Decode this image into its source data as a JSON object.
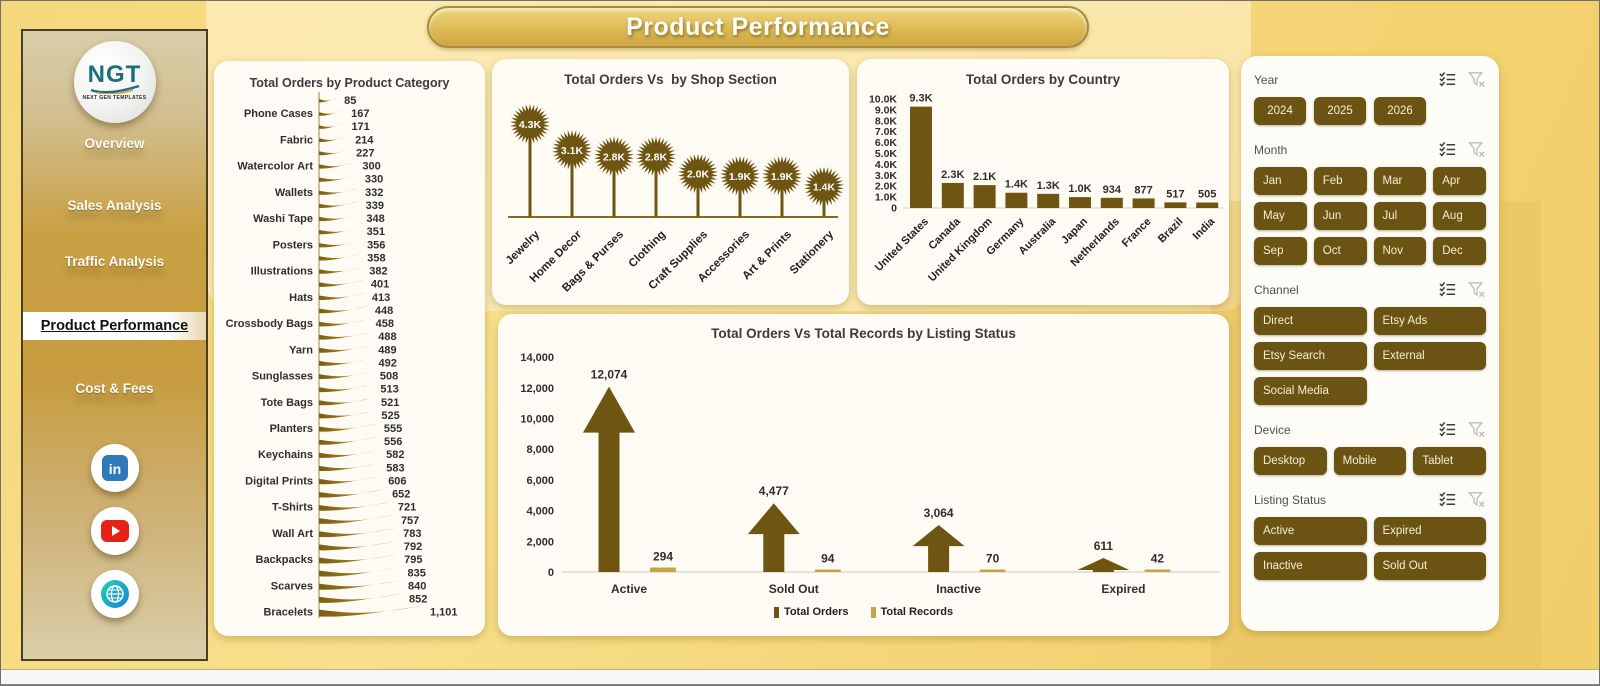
{
  "page": {
    "title": "Product Performance"
  },
  "colors": {
    "accent_dark": "#6e5511",
    "accent_mid": "#7c5e10",
    "accent_light": "#c9a244",
    "ribbon_light": "#bf9c35",
    "axis_text": "#2e2e2e",
    "card_bg": "#fdfbf3"
  },
  "sidebar": {
    "logo": {
      "text": "NGT",
      "subtext": "NEXT GEN TEMPLATES"
    },
    "items": [
      {
        "label": "Overview",
        "active": false
      },
      {
        "label": "Sales Analysis",
        "active": false
      },
      {
        "label": "Traffic Analysis",
        "active": false
      },
      {
        "label": "Product Performance",
        "active": true
      },
      {
        "label": "Cost & Fees",
        "active": false
      }
    ],
    "social": [
      "linkedin-icon",
      "youtube-icon",
      "globe-icon"
    ]
  },
  "chart_data": [
    {
      "type": "bar",
      "orientation": "horizontal",
      "title": "Total Orders by Product Category",
      "categories": [
        "",
        "Phone Cases",
        "",
        "Fabric",
        "",
        "Watercolor Art",
        "",
        "Wallets",
        "",
        "Washi Tape",
        "",
        "Posters",
        "",
        "Illustrations",
        "",
        "Hats",
        "",
        "Crossbody Bags",
        "",
        "Yarn",
        "",
        "Sunglasses",
        "",
        "Tote Bags",
        "",
        "Planters",
        "",
        "Keychains",
        "",
        "Digital Prints",
        "",
        "T-Shirts",
        "",
        "Wall Art",
        "",
        "Backpacks",
        "",
        "Scarves",
        "",
        "Bracelets"
      ],
      "values": [
        85,
        167,
        171,
        214,
        227,
        300,
        330,
        332,
        339,
        348,
        351,
        356,
        358,
        382,
        401,
        413,
        448,
        458,
        488,
        489,
        492,
        508,
        513,
        521,
        525,
        555,
        556,
        582,
        583,
        606,
        652,
        721,
        757,
        783,
        792,
        795,
        835,
        840,
        852,
        1101
      ],
      "value_labels": [
        "85",
        "167",
        "171",
        "214",
        "227",
        "300",
        "330",
        "332",
        "339",
        "348",
        "351",
        "356",
        "358",
        "382",
        "401",
        "413",
        "448",
        "458",
        "488",
        "489",
        "492",
        "508",
        "513",
        "521",
        "525",
        "555",
        "556",
        "582",
        "583",
        "606",
        "652",
        "721",
        "757",
        "783",
        "792",
        "795",
        "835",
        "840",
        "852",
        "1,101"
      ],
      "xlim": [
        0,
        1101
      ]
    },
    {
      "type": "lollipop",
      "title": "Total Orders Vs  by Shop Section",
      "categories": [
        "Jewelry",
        "Home Decor",
        "Bags & Purses",
        "Clothing",
        "Craft Supplies",
        "Accessories",
        "Art & Prints",
        "Stationery"
      ],
      "values": [
        4300,
        3100,
        2800,
        2800,
        2000,
        1900,
        1900,
        1400
      ],
      "value_labels": [
        "4.3K",
        "3.1K",
        "2.8K",
        "2.8K",
        "2.0K",
        "1.9K",
        "1.9K",
        "1.4K"
      ],
      "ylim": [
        0,
        4300
      ]
    },
    {
      "type": "bar",
      "title": "Total Orders by Country",
      "categories": [
        "United States",
        "Canada",
        "United Kingdom",
        "Germany",
        "Australia",
        "Japan",
        "Netherlands",
        "France",
        "Brazil",
        "India"
      ],
      "values": [
        9300,
        2300,
        2100,
        1400,
        1300,
        1000,
        934,
        877,
        517,
        505
      ],
      "value_labels": [
        "9.3K",
        "2.3K",
        "2.1K",
        "1.4K",
        "1.3K",
        "1.0K",
        "934",
        "877",
        "517",
        "505"
      ],
      "yticks": [
        "10.0K",
        "9.0K",
        "8.0K",
        "7.0K",
        "6.0K",
        "5.0K",
        "4.0K",
        "3.0K",
        "2.0K",
        "1.0K",
        "0"
      ],
      "ylim": [
        0,
        10000
      ]
    },
    {
      "type": "arrow-bar",
      "title": "Total Orders Vs Total Records by Listing Status",
      "categories": [
        "Active",
        "Sold Out",
        "Inactive",
        "Expired"
      ],
      "series": [
        {
          "name": "Total Orders",
          "values": [
            12074,
            4477,
            3064,
            611
          ],
          "labels": [
            "12,074",
            "4,477",
            "3,064",
            "611"
          ]
        },
        {
          "name": "Total Records",
          "values": [
            294,
            94,
            70,
            42
          ],
          "labels": [
            "294",
            "94",
            "70",
            "42"
          ]
        }
      ],
      "yticks": [
        "0",
        "2,000",
        "4,000",
        "6,000",
        "8,000",
        "10,000",
        "12,000",
        "14,000"
      ],
      "ylim": [
        0,
        14000
      ],
      "legend_position": "bottom"
    }
  ],
  "slicers": [
    {
      "title": "Year",
      "layout": "year",
      "options": [
        "2024",
        "2025",
        "2026"
      ]
    },
    {
      "title": "Month",
      "layout": "cols-4",
      "options": [
        "Jan",
        "Feb",
        "Mar",
        "Apr",
        "May",
        "Jun",
        "Jul",
        "Aug",
        "Sep",
        "Oct",
        "Nov",
        "Dec"
      ]
    },
    {
      "title": "Channel",
      "layout": "cols-2",
      "options": [
        "Direct",
        "Etsy Ads",
        "Etsy Search",
        "External",
        "Social Media"
      ]
    },
    {
      "title": "Device",
      "layout": "cols-3",
      "options": [
        "Desktop",
        "Mobile",
        "Tablet"
      ]
    },
    {
      "title": "Listing Status",
      "layout": "cols-2",
      "options": [
        "Active",
        "Expired",
        "Inactive",
        "Sold Out"
      ]
    }
  ]
}
